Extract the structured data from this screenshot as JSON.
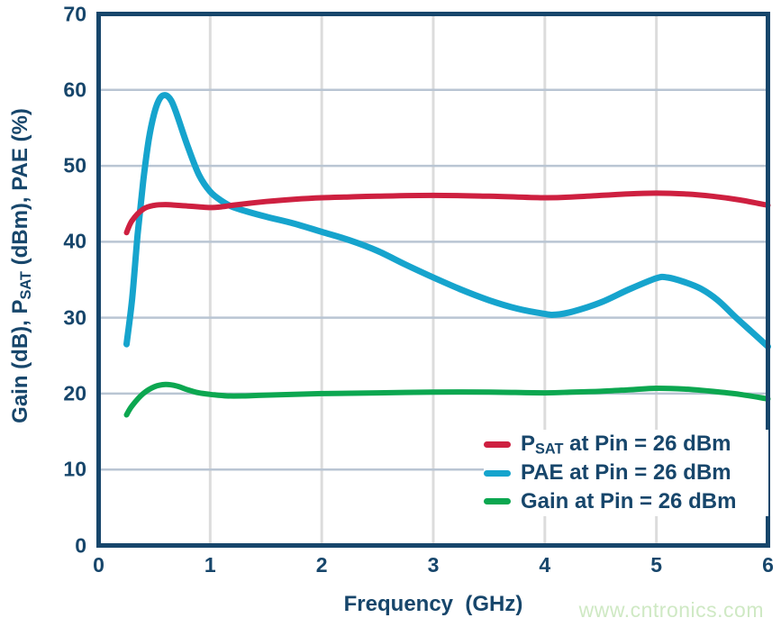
{
  "figure": {
    "y_axis_title": {
      "pre": "Gain (dB), P",
      "sub": "SAT",
      "rest": " (dBm), PAE (%)"
    },
    "x_axis_title": "Frequency  (GHz)",
    "watermark": {
      "text": "www.cntronics.com",
      "color": "#cfe9c4"
    },
    "colors": {
      "axis_frame": "#17466b",
      "text": "#17466b",
      "grid_horizontal": "#b9c5d3",
      "grid_vertical": "#dcdcdc",
      "background": "#ffffff"
    }
  },
  "legend": {
    "items": [
      {
        "pre": "P",
        "sub": "SAT",
        "rest": " at Pin = 26 dBm",
        "color": "#ce2040",
        "series": "psat"
      },
      {
        "pre": "PAE",
        "sub": "",
        "rest": " at Pin = 26 dBm",
        "color": "#16a4cd",
        "series": "pae"
      },
      {
        "pre": "Gain",
        "sub": "",
        "rest": " at Pin = 26 dBm",
        "color": "#0ca750",
        "series": "gain"
      }
    ]
  },
  "chart_data": {
    "type": "line",
    "title": "",
    "xlabel": "Frequency (GHz)",
    "ylabel": "Gain (dB), P_SAT (dBm), PAE (%)",
    "xlim": [
      0,
      6
    ],
    "ylim": [
      0,
      70
    ],
    "xticks": [
      0,
      1,
      2,
      3,
      4,
      5,
      6
    ],
    "yticks": [
      0,
      10,
      20,
      30,
      40,
      50,
      60,
      70
    ],
    "grid": true,
    "legend_position": "inside-bottom-right",
    "series": [
      {
        "name": "P_SAT at Pin = 26 dBm",
        "color": "#ce2040",
        "stroke_width": 6,
        "points": [
          [
            0.25,
            41.2
          ],
          [
            0.3,
            42.8
          ],
          [
            0.4,
            44.3
          ],
          [
            0.5,
            44.8
          ],
          [
            0.6,
            44.9
          ],
          [
            0.7,
            44.8
          ],
          [
            0.8,
            44.7
          ],
          [
            0.9,
            44.6
          ],
          [
            1.0,
            44.5
          ],
          [
            1.1,
            44.6
          ],
          [
            1.25,
            44.9
          ],
          [
            1.5,
            45.3
          ],
          [
            1.75,
            45.6
          ],
          [
            2.0,
            45.8
          ],
          [
            2.25,
            45.9
          ],
          [
            2.5,
            46.0
          ],
          [
            3.0,
            46.1
          ],
          [
            3.5,
            46.0
          ],
          [
            4.0,
            45.8
          ],
          [
            4.25,
            45.9
          ],
          [
            4.5,
            46.1
          ],
          [
            4.75,
            46.3
          ],
          [
            5.0,
            46.4
          ],
          [
            5.25,
            46.3
          ],
          [
            5.5,
            46.0
          ],
          [
            5.75,
            45.5
          ],
          [
            6.0,
            44.8
          ]
        ]
      },
      {
        "name": "PAE at Pin = 26 dBm",
        "color": "#16a4cd",
        "stroke_width": 7,
        "points": [
          [
            0.25,
            26.5
          ],
          [
            0.3,
            32.5
          ],
          [
            0.35,
            41.0
          ],
          [
            0.4,
            48.0
          ],
          [
            0.45,
            53.5
          ],
          [
            0.5,
            57.0
          ],
          [
            0.55,
            58.9
          ],
          [
            0.6,
            59.3
          ],
          [
            0.65,
            58.6
          ],
          [
            0.7,
            56.8
          ],
          [
            0.8,
            52.5
          ],
          [
            0.9,
            48.8
          ],
          [
            1.0,
            46.6
          ],
          [
            1.1,
            45.4
          ],
          [
            1.2,
            44.6
          ],
          [
            1.35,
            43.9
          ],
          [
            1.5,
            43.3
          ],
          [
            1.75,
            42.4
          ],
          [
            2.0,
            41.3
          ],
          [
            2.25,
            40.2
          ],
          [
            2.5,
            38.8
          ],
          [
            2.75,
            37.0
          ],
          [
            3.0,
            35.3
          ],
          [
            3.25,
            33.7
          ],
          [
            3.5,
            32.3
          ],
          [
            3.75,
            31.2
          ],
          [
            4.0,
            30.5
          ],
          [
            4.1,
            30.4
          ],
          [
            4.25,
            30.8
          ],
          [
            4.5,
            32.0
          ],
          [
            4.75,
            33.7
          ],
          [
            5.0,
            35.2
          ],
          [
            5.1,
            35.3
          ],
          [
            5.25,
            34.7
          ],
          [
            5.4,
            33.8
          ],
          [
            5.55,
            32.3
          ],
          [
            5.7,
            30.2
          ],
          [
            5.85,
            28.2
          ],
          [
            6.0,
            26.2
          ]
        ]
      },
      {
        "name": "Gain at Pin = 26 dBm",
        "color": "#0ca750",
        "stroke_width": 6,
        "points": [
          [
            0.25,
            17.2
          ],
          [
            0.3,
            18.4
          ],
          [
            0.4,
            20.0
          ],
          [
            0.5,
            20.9
          ],
          [
            0.6,
            21.2
          ],
          [
            0.7,
            21.0
          ],
          [
            0.8,
            20.5
          ],
          [
            0.9,
            20.1
          ],
          [
            1.0,
            19.9
          ],
          [
            1.15,
            19.7
          ],
          [
            1.3,
            19.7
          ],
          [
            1.5,
            19.8
          ],
          [
            2.0,
            20.0
          ],
          [
            2.5,
            20.1
          ],
          [
            3.0,
            20.2
          ],
          [
            3.5,
            20.2
          ],
          [
            4.0,
            20.1
          ],
          [
            4.25,
            20.2
          ],
          [
            4.5,
            20.3
          ],
          [
            4.75,
            20.5
          ],
          [
            5.0,
            20.7
          ],
          [
            5.25,
            20.6
          ],
          [
            5.5,
            20.3
          ],
          [
            5.75,
            19.9
          ],
          [
            6.0,
            19.3
          ]
        ]
      }
    ]
  }
}
